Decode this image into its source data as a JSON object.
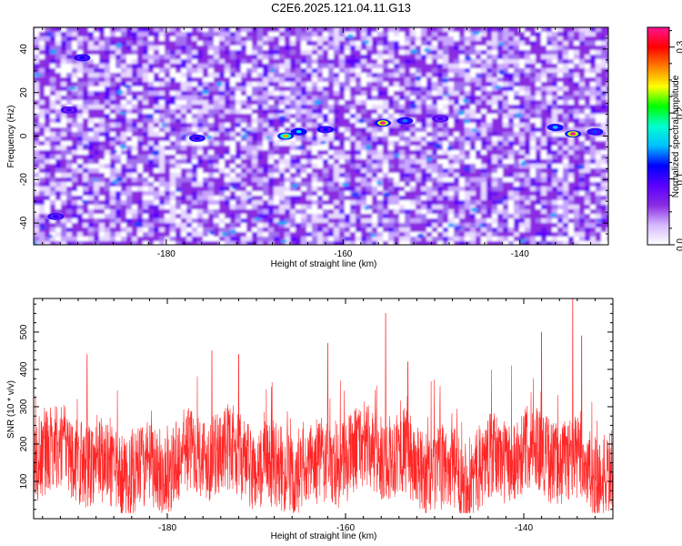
{
  "title": "C2E6.2025.121.04.11.G13",
  "chart_data": [
    {
      "type": "heatmap",
      "xlabel": "Height of straight line (km)",
      "ylabel": "Frequency (Hz)",
      "xlim": [
        -195,
        -130
      ],
      "ylim": [
        -50,
        50
      ],
      "xticks": [
        -180,
        -160,
        -140
      ],
      "yticks": [
        -40,
        -20,
        0,
        20,
        40
      ],
      "colorbar": {
        "label": "Normalized spectral amplitude",
        "range": [
          0,
          0.33
        ],
        "ticks": [
          0,
          0.1,
          0.2,
          0.3
        ],
        "colors": [
          "#ffffff",
          "#d6b8ff",
          "#8a2be2",
          "#5a00ff",
          "#0000ff",
          "#00bfff",
          "#00ffd0",
          "#00ff00",
          "#ffff00",
          "#ff8000",
          "#ff0000",
          "#ff1493"
        ]
      },
      "features": [
        {
          "x": -166.5,
          "y": 0,
          "value": 0.26
        },
        {
          "x": -165,
          "y": 2,
          "value": 0.16
        },
        {
          "x": -162,
          "y": 3,
          "value": 0.12
        },
        {
          "x": -155.5,
          "y": 6,
          "value": 0.33
        },
        {
          "x": -153,
          "y": 7,
          "value": 0.14
        },
        {
          "x": -149,
          "y": 8,
          "value": 0.1
        },
        {
          "x": -134,
          "y": 1,
          "value": 0.33
        },
        {
          "x": -136,
          "y": 4,
          "value": 0.15
        },
        {
          "x": -131.5,
          "y": 2,
          "value": 0.13
        },
        {
          "x": -176.5,
          "y": -1,
          "value": 0.12
        },
        {
          "x": -189.5,
          "y": 36,
          "value": 0.12
        },
        {
          "x": -192.5,
          "y": -37,
          "value": 0.11
        },
        {
          "x": -191,
          "y": 12,
          "value": 0.1
        }
      ]
    },
    {
      "type": "line",
      "xlabel": "Height of straight line (km)",
      "ylabel": "SNR (10 * v/v)",
      "xlim": [
        -195,
        -130
      ],
      "ylim": [
        0,
        590
      ],
      "xticks": [
        -180,
        -160,
        -140
      ],
      "yticks": [
        100,
        200,
        300,
        400,
        500
      ],
      "color": "#ff0000",
      "peaks": [
        {
          "x": -189,
          "y": 440
        },
        {
          "x": -175,
          "y": 450
        },
        {
          "x": -172,
          "y": 440
        },
        {
          "x": -162,
          "y": 470
        },
        {
          "x": -155.5,
          "y": 550
        },
        {
          "x": -153,
          "y": 420
        },
        {
          "x": -138,
          "y": 500
        },
        {
          "x": -134.5,
          "y": 590
        },
        {
          "x": -133.5,
          "y": 490
        }
      ]
    }
  ]
}
